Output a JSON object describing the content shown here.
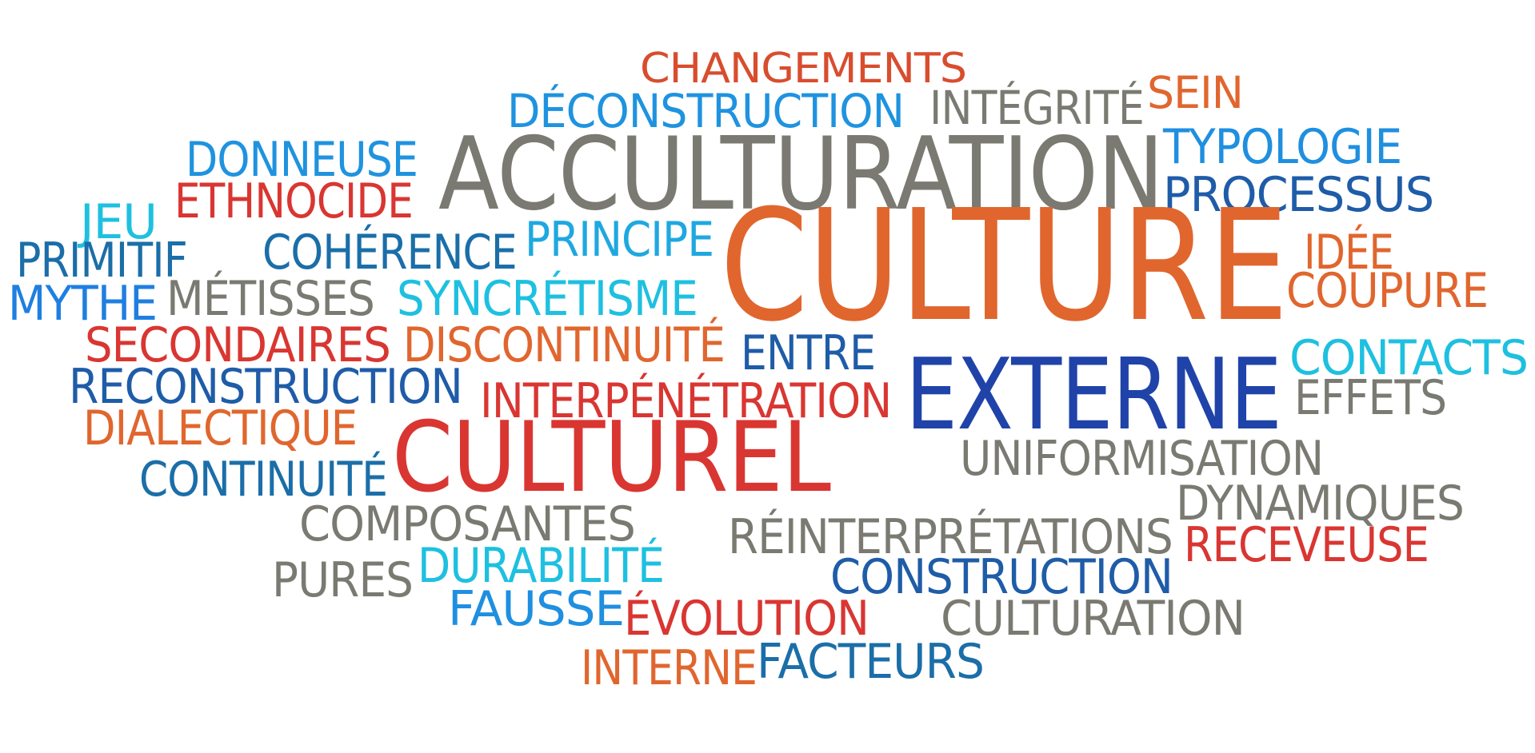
{
  "colors": {
    "orange": "#E0662E",
    "red": "#D93632",
    "gray": "#7A7A72",
    "blue": "#1F93DF",
    "cyan": "#1EC0E0",
    "navy": "#1F5CA8",
    "deep_blue": "#1F43A8",
    "teal": "#1B6EA8"
  },
  "words": [
    {
      "text": "CHANGEMENTS",
      "color": "#D84D2E"
    },
    {
      "text": "SEIN",
      "color": "#E0662E"
    },
    {
      "text": "DÉCONSTRUCTION",
      "color": "#1F93DF"
    },
    {
      "text": "INTÉGRITÉ",
      "color": "#7A7A72"
    },
    {
      "text": "TYPOLOGIE",
      "color": "#1F8FE0"
    },
    {
      "text": "DONNEUSE",
      "color": "#1F93DF"
    },
    {
      "text": "ACCULTURATION",
      "color": "#7A7A72"
    },
    {
      "text": "PROCESSUS",
      "color": "#1F5CA8"
    },
    {
      "text": "ETHNOCIDE",
      "color": "#D93632"
    },
    {
      "text": "JEU",
      "color": "#1EC0E0"
    },
    {
      "text": "PRINCIPE",
      "color": "#1FA8E0"
    },
    {
      "text": "CULTURE",
      "color": "#E0662E"
    },
    {
      "text": "IDÉE",
      "color": "#E0662E"
    },
    {
      "text": "PRIMITIF",
      "color": "#1B6EA8"
    },
    {
      "text": "COHÉRENCE",
      "color": "#1B6EA8"
    },
    {
      "text": "COUPURE",
      "color": "#E0662E"
    },
    {
      "text": "MYTHE",
      "color": "#1F7FE0"
    },
    {
      "text": "MÉTISSES",
      "color": "#7A7A72"
    },
    {
      "text": "SYNCRÉTISME",
      "color": "#1EC0E0"
    },
    {
      "text": "SECONDAIRES",
      "color": "#D93632"
    },
    {
      "text": "DISCONTINUITÉ",
      "color": "#E0662E"
    },
    {
      "text": "ENTRE",
      "color": "#1F5CA8"
    },
    {
      "text": "CONTACTS",
      "color": "#1EC0E0"
    },
    {
      "text": "EXTERNE",
      "color": "#1F43A8"
    },
    {
      "text": "RECONSTRUCTION",
      "color": "#1F5CA8"
    },
    {
      "text": "INTERPÉNÉTRATION",
      "color": "#D93632"
    },
    {
      "text": "EFFETS",
      "color": "#7A7A72"
    },
    {
      "text": "DIALECTIQUE",
      "color": "#E0662E"
    },
    {
      "text": "CULTUREL",
      "color": "#D93632"
    },
    {
      "text": "UNIFORMISATION",
      "color": "#7A7A72"
    },
    {
      "text": "CONTINUITÉ",
      "color": "#1B6EA8"
    },
    {
      "text": "DYNAMIQUES",
      "color": "#7A7A72"
    },
    {
      "text": "COMPOSANTES",
      "color": "#7A7A72"
    },
    {
      "text": "RÉINTERPRÉTATIONS",
      "color": "#7A7A72"
    },
    {
      "text": "RECEVEUSE",
      "color": "#D93632"
    },
    {
      "text": "DURABILITÉ",
      "color": "#1EC0E0"
    },
    {
      "text": "PURES",
      "color": "#7A7A72"
    },
    {
      "text": "CONSTRUCTION",
      "color": "#1F5CA8"
    },
    {
      "text": "FAUSSE",
      "color": "#1F8FE0"
    },
    {
      "text": "ÉVOLUTION",
      "color": "#D93632"
    },
    {
      "text": "CULTURATION",
      "color": "#7A7A72"
    },
    {
      "text": "INTERNE",
      "color": "#E0662E"
    },
    {
      "text": "FACTEURS",
      "color": "#1B6EA8"
    }
  ]
}
